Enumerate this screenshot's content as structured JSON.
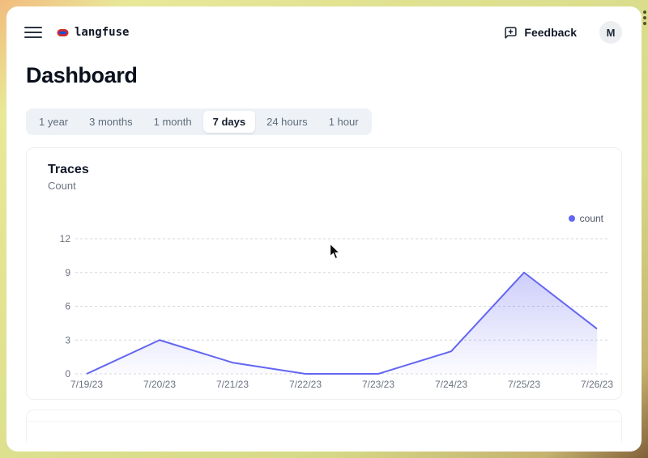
{
  "topbar": {
    "brand": "langfuse",
    "feedback_label": "Feedback",
    "avatar_initial": "M"
  },
  "page_title": "Dashboard",
  "time_tabs": {
    "active": "7 days",
    "items": [
      {
        "label": "1 year"
      },
      {
        "label": "3 months"
      },
      {
        "label": "1 month"
      },
      {
        "label": "7 days"
      },
      {
        "label": "24 hours"
      },
      {
        "label": "1 hour"
      }
    ]
  },
  "traces_card": {
    "title": "Traces",
    "subtitle": "Count",
    "legend": [
      {
        "label": "count",
        "color": "#6366f1"
      }
    ]
  },
  "chart_data": {
    "type": "area",
    "title": "Traces",
    "ylabel": "Count",
    "x": [
      "7/19/23",
      "7/20/23",
      "7/21/23",
      "7/22/23",
      "7/23/23",
      "7/24/23",
      "7/25/23",
      "7/26/23"
    ],
    "series": [
      {
        "name": "count",
        "color": "#6366f1",
        "values": [
          0,
          3,
          1,
          0,
          0,
          2,
          9,
          4
        ]
      }
    ],
    "ylim": [
      0,
      12
    ],
    "yticks": [
      0,
      3,
      6,
      9,
      12
    ],
    "grid": "horizontal-dashed",
    "legend_position": "top-right"
  },
  "colors": {
    "accent": "#6366f1",
    "tab_bar_bg": "#eef2f7",
    "grid_line": "#d4d7dc",
    "muted_text": "#6b7280"
  }
}
